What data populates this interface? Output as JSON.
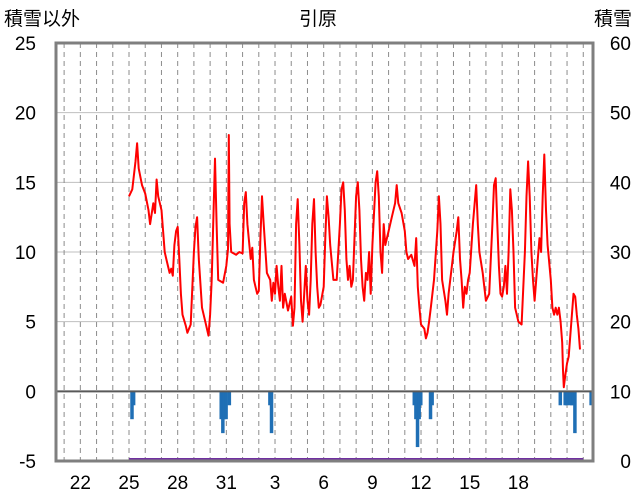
{
  "chart_data": {
    "type": "line",
    "title": "引原",
    "left_axis_label": "積雪以外",
    "right_axis_label": "積雪",
    "left_ylim": [
      -5,
      25
    ],
    "left_ticks": [
      "25",
      "20",
      "15",
      "10",
      "5",
      "0",
      "-5"
    ],
    "right_ylim": [
      0,
      60
    ],
    "right_ticks": [
      "60",
      "50",
      "40",
      "30",
      "20",
      "10",
      "0"
    ],
    "x_tick_labels": [
      "22",
      "25",
      "28",
      "31",
      "3",
      "6",
      "9",
      "12",
      "15",
      "18"
    ],
    "grid": true,
    "temperature_color": "#ff0000",
    "precip_color": "#1f6fb5",
    "snow_color": "#7030a0",
    "temperature": [
      [
        25.0,
        14.0
      ],
      [
        25.2,
        14.5
      ],
      [
        25.4,
        16.5
      ],
      [
        25.5,
        17.8
      ],
      [
        25.6,
        16.0
      ],
      [
        25.8,
        14.8
      ],
      [
        26.0,
        14.2
      ],
      [
        26.2,
        13.0
      ],
      [
        26.3,
        12.0
      ],
      [
        26.5,
        13.5
      ],
      [
        26.6,
        12.8
      ],
      [
        26.7,
        15.2
      ],
      [
        26.8,
        14.0
      ],
      [
        27.0,
        13.0
      ],
      [
        27.2,
        10.0
      ],
      [
        27.3,
        9.5
      ],
      [
        27.5,
        8.5
      ],
      [
        27.6,
        8.8
      ],
      [
        27.7,
        8.3
      ],
      [
        27.8,
        10.5
      ],
      [
        27.9,
        11.5
      ],
      [
        28.0,
        11.8
      ],
      [
        28.1,
        9.5
      ],
      [
        28.2,
        7.0
      ],
      [
        28.3,
        5.5
      ],
      [
        28.5,
        4.7
      ],
      [
        28.6,
        4.2
      ],
      [
        28.8,
        4.8
      ],
      [
        29.0,
        10.0
      ],
      [
        29.1,
        11.8
      ],
      [
        29.2,
        12.5
      ],
      [
        29.3,
        9.5
      ],
      [
        29.5,
        6.0
      ],
      [
        29.7,
        5.0
      ],
      [
        29.9,
        4.0
      ],
      [
        30.0,
        5.5
      ],
      [
        30.1,
        8.0
      ],
      [
        30.2,
        12.5
      ],
      [
        30.3,
        16.7
      ],
      [
        30.4,
        12.0
      ],
      [
        30.5,
        8.0
      ],
      [
        30.8,
        7.8
      ],
      [
        31.0,
        9.0
      ],
      [
        31.1,
        10.2
      ],
      [
        31.15,
        18.4
      ],
      [
        31.2,
        12.0
      ],
      [
        31.3,
        10.0
      ],
      [
        31.6,
        9.8
      ],
      [
        31.8,
        10.0
      ],
      [
        32.0,
        9.9
      ],
      [
        32.1,
        13.5
      ],
      [
        32.2,
        14.3
      ],
      [
        32.3,
        12.0
      ],
      [
        32.5,
        9.5
      ],
      [
        32.6,
        10.3
      ],
      [
        32.7,
        8.0
      ],
      [
        32.8,
        7.5
      ],
      [
        32.9,
        7.0
      ],
      [
        33.0,
        7.2
      ],
      [
        33.1,
        11.0
      ],
      [
        33.2,
        14.0
      ],
      [
        33.3,
        12.0
      ],
      [
        33.5,
        8.5
      ],
      [
        33.7,
        8.0
      ],
      [
        33.8,
        6.5
      ],
      [
        33.9,
        7.8
      ],
      [
        34.0,
        7.0
      ],
      [
        34.1,
        9.0
      ],
      [
        34.2,
        7.5
      ],
      [
        34.3,
        6.5
      ],
      [
        34.4,
        9.0
      ],
      [
        34.5,
        6.0
      ],
      [
        34.6,
        7.0
      ],
      [
        34.8,
        5.8
      ],
      [
        35.0,
        6.8
      ],
      [
        35.1,
        4.7
      ],
      [
        35.2,
        6.0
      ],
      [
        35.3,
        12.0
      ],
      [
        35.4,
        13.8
      ],
      [
        35.5,
        10.5
      ],
      [
        35.6,
        6.5
      ],
      [
        35.7,
        5.0
      ],
      [
        35.8,
        7.0
      ],
      [
        35.9,
        9.0
      ],
      [
        36.0,
        6.5
      ],
      [
        36.1,
        5.5
      ],
      [
        36.2,
        8.0
      ],
      [
        36.3,
        12.0
      ],
      [
        36.4,
        13.8
      ],
      [
        36.5,
        10.0
      ],
      [
        36.6,
        7.5
      ],
      [
        36.7,
        6.0
      ],
      [
        36.8,
        6.2
      ],
      [
        37.0,
        7.5
      ],
      [
        37.1,
        11.0
      ],
      [
        37.2,
        14.0
      ],
      [
        37.3,
        12.5
      ],
      [
        37.4,
        10.5
      ],
      [
        37.6,
        8.0
      ],
      [
        37.8,
        8.0
      ],
      [
        38.0,
        12.0
      ],
      [
        38.1,
        14.5
      ],
      [
        38.2,
        15.0
      ],
      [
        38.3,
        13.0
      ],
      [
        38.4,
        9.5
      ],
      [
        38.5,
        8.0
      ],
      [
        38.6,
        9.0
      ],
      [
        38.7,
        7.5
      ],
      [
        38.8,
        8.0
      ],
      [
        38.9,
        11.0
      ],
      [
        39.0,
        14.0
      ],
      [
        39.1,
        15.0
      ],
      [
        39.2,
        13.0
      ],
      [
        39.3,
        9.5
      ],
      [
        39.4,
        7.5
      ],
      [
        39.5,
        6.5
      ],
      [
        39.6,
        8.5
      ],
      [
        39.7,
        8.0
      ],
      [
        39.8,
        10.0
      ],
      [
        39.9,
        7.0
      ],
      [
        40.0,
        10.5
      ],
      [
        40.2,
        15.0
      ],
      [
        40.3,
        15.8
      ],
      [
        40.4,
        14.0
      ],
      [
        40.5,
        10.0
      ],
      [
        40.6,
        8.5
      ],
      [
        40.7,
        12.0
      ],
      [
        40.8,
        10.5
      ],
      [
        41.0,
        11.5
      ],
      [
        41.2,
        12.5
      ],
      [
        41.4,
        13.5
      ],
      [
        41.5,
        14.8
      ],
      [
        41.6,
        13.5
      ],
      [
        41.8,
        12.8
      ],
      [
        42.0,
        11.5
      ],
      [
        42.1,
        10.0
      ],
      [
        42.2,
        9.5
      ],
      [
        42.4,
        9.8
      ],
      [
        42.6,
        9.0
      ],
      [
        42.7,
        11.0
      ],
      [
        42.8,
        7.5
      ],
      [
        42.9,
        6.0
      ],
      [
        43.0,
        4.8
      ],
      [
        43.2,
        4.5
      ],
      [
        43.3,
        3.8
      ],
      [
        43.4,
        4.2
      ],
      [
        43.5,
        5.0
      ],
      [
        43.6,
        6.0
      ],
      [
        43.8,
        8.0
      ],
      [
        44.0,
        11.5
      ],
      [
        44.1,
        14.0
      ],
      [
        44.2,
        12.0
      ],
      [
        44.3,
        8.0
      ],
      [
        44.5,
        6.5
      ],
      [
        44.6,
        5.5
      ],
      [
        44.7,
        7.0
      ],
      [
        44.9,
        9.0
      ],
      [
        45.0,
        10.0
      ],
      [
        45.2,
        11.5
      ],
      [
        45.3,
        12.5
      ],
      [
        45.4,
        9.5
      ],
      [
        45.5,
        8.0
      ],
      [
        45.6,
        6.0
      ],
      [
        45.7,
        7.5
      ],
      [
        45.8,
        7.0
      ],
      [
        45.9,
        8.0
      ],
      [
        46.0,
        8.5
      ],
      [
        46.2,
        12.0
      ],
      [
        46.4,
        14.8
      ],
      [
        46.5,
        12.0
      ],
      [
        46.6,
        10.0
      ],
      [
        46.8,
        8.5
      ],
      [
        47.0,
        6.5
      ],
      [
        47.2,
        7.0
      ],
      [
        47.4,
        12.0
      ],
      [
        47.5,
        14.8
      ],
      [
        47.6,
        15.3
      ],
      [
        47.7,
        12.0
      ],
      [
        47.8,
        9.0
      ],
      [
        47.9,
        7.0
      ],
      [
        48.0,
        6.8
      ],
      [
        48.1,
        7.5
      ],
      [
        48.2,
        9.0
      ],
      [
        48.3,
        7.0
      ],
      [
        48.4,
        10.0
      ],
      [
        48.5,
        14.5
      ],
      [
        48.6,
        13.0
      ],
      [
        48.7,
        10.0
      ],
      [
        48.8,
        6.0
      ],
      [
        49.0,
        5.0
      ],
      [
        49.2,
        4.8
      ],
      [
        49.4,
        10.0
      ],
      [
        49.5,
        14.0
      ],
      [
        49.6,
        16.5
      ],
      [
        49.7,
        14.0
      ],
      [
        49.8,
        10.0
      ],
      [
        49.9,
        8.0
      ],
      [
        50.0,
        6.5
      ],
      [
        50.2,
        9.5
      ],
      [
        50.3,
        11.0
      ],
      [
        50.4,
        10.0
      ],
      [
        50.5,
        14.0
      ],
      [
        50.6,
        17.0
      ],
      [
        50.7,
        13.0
      ],
      [
        50.8,
        10.5
      ],
      [
        51.0,
        8.0
      ],
      [
        51.1,
        6.0
      ],
      [
        51.2,
        5.5
      ],
      [
        51.3,
        6.0
      ],
      [
        51.4,
        5.5
      ],
      [
        51.5,
        6.0
      ],
      [
        51.6,
        5.0
      ],
      [
        51.7,
        3.5
      ],
      [
        51.75,
        1.5
      ],
      [
        51.8,
        0.3
      ],
      [
        51.9,
        1.2
      ],
      [
        52.0,
        2.0
      ],
      [
        52.1,
        2.5
      ],
      [
        52.2,
        4.0
      ],
      [
        52.3,
        5.5
      ],
      [
        52.4,
        7.0
      ],
      [
        52.5,
        6.8
      ],
      [
        52.6,
        5.5
      ],
      [
        52.7,
        4.5
      ],
      [
        52.8,
        3.0
      ]
    ],
    "precipitation": [
      [
        25.2,
        -2.0
      ],
      [
        25.3,
        -1.0
      ],
      [
        30.7,
        -2.0
      ],
      [
        30.8,
        -3.0
      ],
      [
        30.9,
        -2.0
      ],
      [
        31.0,
        -2.0
      ],
      [
        31.2,
        -1.0
      ],
      [
        33.7,
        -1.0
      ],
      [
        33.8,
        -3.0
      ],
      [
        42.6,
        -1.0
      ],
      [
        42.7,
        -2.0
      ],
      [
        42.8,
        -4.0
      ],
      [
        42.9,
        -2.0
      ],
      [
        43.0,
        -1.0
      ],
      [
        43.6,
        -2.0
      ],
      [
        43.7,
        -1.0
      ],
      [
        51.6,
        -1.0
      ],
      [
        51.9,
        -1.0
      ],
      [
        52.0,
        -1.0
      ],
      [
        52.2,
        -1.0
      ],
      [
        52.3,
        -1.0
      ],
      [
        52.4,
        -1.0
      ],
      [
        52.5,
        -3.0
      ],
      [
        53.5,
        -1.0
      ]
    ],
    "snow_depth": [
      [
        25.0,
        0
      ],
      [
        53.0,
        0
      ]
    ]
  }
}
